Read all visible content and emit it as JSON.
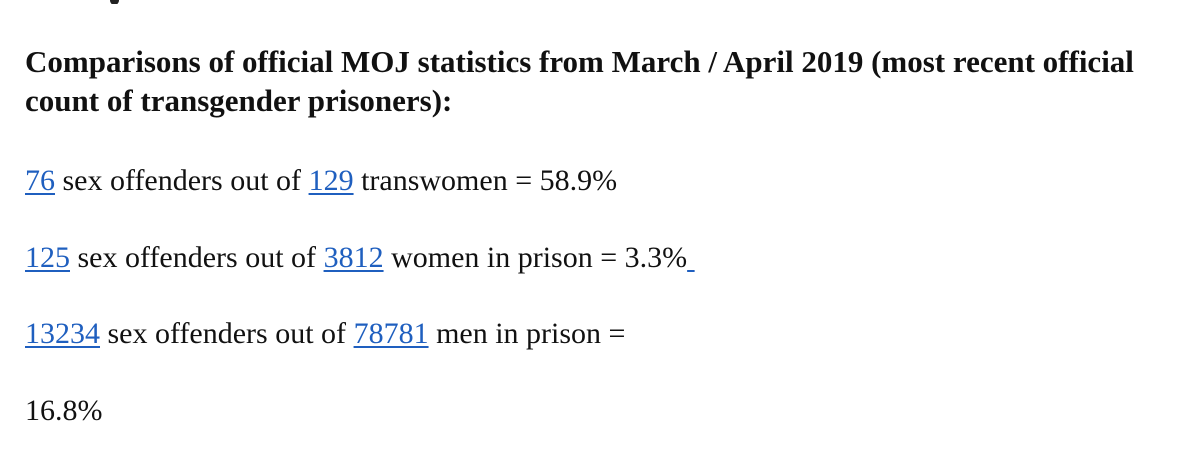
{
  "heading": "Comparisons of official MOJ statistics from March / April 2019 (most recent official count of transgender prisoners):",
  "lines": [
    {
      "count": "76",
      "middle": " sex offenders out of ",
      "total": "129",
      "suffix": " transwomen = 58.9%"
    },
    {
      "count": "125",
      "middle": " sex offenders out of ",
      "total": "3812",
      "suffix": " women in prison = 3.3%"
    },
    {
      "count": "13234",
      "middle": " sex offenders out of ",
      "total": "78781",
      "suffix": " men in prison ="
    }
  ],
  "result_line": "16.8%",
  "colors": {
    "link": "#1f5fbf",
    "text": "#111111",
    "background": "#ffffff"
  }
}
